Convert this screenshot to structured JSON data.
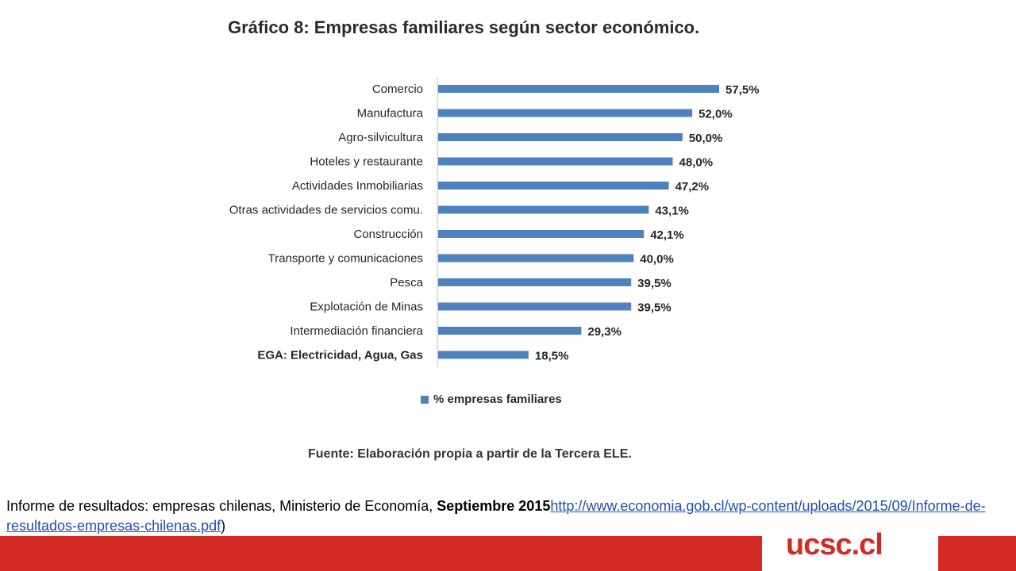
{
  "chart_data": {
    "type": "bar",
    "orientation": "horizontal",
    "title": "Gráfico 8: Empresas familiares según sector económico.",
    "categories": [
      "Comercio",
      "Manufactura",
      "Agro-silvicultura",
      "Hoteles y restaurante",
      "Actividades Inmobiliarias",
      "Otras actividades de servicios comu.",
      "Construcción",
      "Transporte y comunicaciones",
      "Pesca",
      "Explotación de Minas",
      "Intermediación financiera",
      "EGA: Electricidad,  Agua, Gas"
    ],
    "series": [
      {
        "name": "% empresas familiares",
        "values": [
          57.5,
          52.0,
          50.0,
          48.0,
          47.2,
          43.1,
          42.1,
          40.0,
          39.5,
          39.5,
          29.3,
          18.5
        ],
        "value_labels": [
          "57,5%",
          "52,0%",
          "50,0%",
          "48,0%",
          "47,2%",
          "43,1%",
          "42,1%",
          "40,0%",
          "39,5%",
          "39,5%",
          "29,3%",
          "18,5%"
        ]
      }
    ],
    "xlim": [
      0,
      60
    ],
    "grid": false,
    "legend_position": "bottom",
    "color": "#4f81bd"
  },
  "source_note": "Fuente: Elaboración propia a partir de la Tercera ELE.",
  "reference": {
    "text": "Informe de resultados: empresas chilenas, Ministerio de Economía, ",
    "date": "Septiembre 2015",
    "link": "http://www.economia.gob.cl/wp-content/uploads/2015/09/Informe-de-resultados-empresas-chilenas.pdf",
    "closing": ")"
  },
  "footer": {
    "logo_text": "ucsc.cl",
    "brand_color": "#d42a25"
  }
}
